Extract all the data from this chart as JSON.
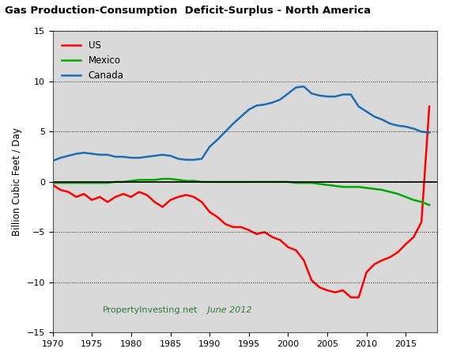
{
  "title": "Gas Production-Consumption  Deficit-Surplus - North America",
  "ylabel": "Billion Cubic Feet / Day",
  "ylim": [
    -15,
    15
  ],
  "yticks": [
    -15,
    -10,
    -5,
    0,
    5,
    10,
    15
  ],
  "xlim": [
    1970,
    2019
  ],
  "background_color": "#d9d9d9",
  "xticks": [
    1970,
    1975,
    1980,
    1985,
    1990,
    1995,
    2000,
    2005,
    2010,
    2015
  ],
  "us": {
    "label": "US",
    "color": "#ff0000",
    "years": [
      1970,
      1971,
      1972,
      1973,
      1974,
      1975,
      1976,
      1977,
      1978,
      1979,
      1980,
      1981,
      1982,
      1983,
      1984,
      1985,
      1986,
      1987,
      1988,
      1989,
      1990,
      1991,
      1992,
      1993,
      1994,
      1995,
      1996,
      1997,
      1998,
      1999,
      2000,
      2001,
      2002,
      2003,
      2004,
      2005,
      2006,
      2007,
      2008,
      2009,
      2010,
      2011,
      2012,
      2013,
      2014,
      2015,
      2016,
      2017,
      2018
    ],
    "values": [
      -0.3,
      -0.8,
      -1.0,
      -1.5,
      -1.2,
      -1.8,
      -1.5,
      -2.0,
      -1.5,
      -1.2,
      -1.5,
      -1.0,
      -1.3,
      -2.0,
      -2.5,
      -1.8,
      -1.5,
      -1.3,
      -1.5,
      -2.0,
      -3.0,
      -3.5,
      -4.2,
      -4.5,
      -4.5,
      -4.8,
      -5.2,
      -5.0,
      -5.5,
      -5.8,
      -6.5,
      -6.8,
      -7.8,
      -9.8,
      -10.5,
      -10.8,
      -11.0,
      -10.8,
      -11.5,
      -11.5,
      -9.0,
      -8.2,
      -7.8,
      -7.5,
      -7.0,
      -6.2,
      -5.5,
      -4.0,
      7.5
    ]
  },
  "mexico": {
    "label": "Mexico",
    "color": "#00aa00",
    "years": [
      1970,
      1971,
      1972,
      1973,
      1974,
      1975,
      1976,
      1977,
      1978,
      1979,
      1980,
      1981,
      1982,
      1983,
      1984,
      1985,
      1986,
      1987,
      1988,
      1989,
      1990,
      1991,
      1992,
      1993,
      1994,
      1995,
      1996,
      1997,
      1998,
      1999,
      2000,
      2001,
      2002,
      2003,
      2004,
      2005,
      2006,
      2007,
      2008,
      2009,
      2010,
      2011,
      2012,
      2013,
      2014,
      2015,
      2016,
      2017,
      2018
    ],
    "values": [
      -0.1,
      -0.1,
      -0.1,
      -0.1,
      -0.1,
      -0.1,
      -0.1,
      -0.1,
      0.0,
      0.0,
      0.1,
      0.2,
      0.2,
      0.2,
      0.3,
      0.3,
      0.2,
      0.1,
      0.1,
      0.0,
      0.0,
      0.0,
      0.0,
      0.0,
      0.0,
      0.0,
      0.0,
      0.0,
      0.0,
      0.0,
      0.0,
      -0.1,
      -0.1,
      -0.1,
      -0.2,
      -0.3,
      -0.4,
      -0.5,
      -0.5,
      -0.5,
      -0.6,
      -0.7,
      -0.8,
      -1.0,
      -1.2,
      -1.5,
      -1.8,
      -2.0,
      -2.3
    ]
  },
  "canada": {
    "label": "Canada",
    "color": "#1e6eb5",
    "years": [
      1970,
      1971,
      1972,
      1973,
      1974,
      1975,
      1976,
      1977,
      1978,
      1979,
      1980,
      1981,
      1982,
      1983,
      1984,
      1985,
      1986,
      1987,
      1988,
      1989,
      1990,
      1991,
      1992,
      1993,
      1994,
      1995,
      1996,
      1997,
      1998,
      1999,
      2000,
      2001,
      2002,
      2003,
      2004,
      2005,
      2006,
      2007,
      2008,
      2009,
      2010,
      2011,
      2012,
      2013,
      2014,
      2015,
      2016,
      2017,
      2018
    ],
    "values": [
      2.1,
      2.4,
      2.6,
      2.8,
      2.9,
      2.8,
      2.7,
      2.7,
      2.5,
      2.5,
      2.4,
      2.4,
      2.5,
      2.6,
      2.7,
      2.6,
      2.3,
      2.2,
      2.2,
      2.3,
      3.5,
      4.2,
      5.0,
      5.8,
      6.5,
      7.2,
      7.6,
      7.7,
      7.9,
      8.2,
      8.8,
      9.4,
      9.5,
      8.8,
      8.6,
      8.5,
      8.5,
      8.7,
      8.7,
      7.5,
      7.0,
      6.5,
      6.2,
      5.8,
      5.6,
      5.5,
      5.3,
      5.0,
      4.9
    ]
  },
  "watermark": "PropertyInvesting.net",
  "watermark_italic": " June 2012"
}
